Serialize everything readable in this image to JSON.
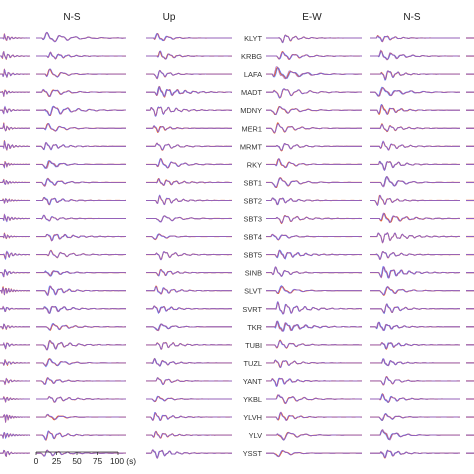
{
  "chart_data": {
    "type": "line",
    "panels": [
      {
        "component": ""
      },
      {
        "component": "N-S"
      },
      {
        "component": "Up"
      },
      {
        "component": "E-W"
      },
      {
        "component": "N-S"
      },
      {
        "component": ""
      }
    ],
    "stations": [
      "KLYT",
      "KRBG",
      "LAFA",
      "MADT",
      "MDNY",
      "MER1",
      "MRMT",
      "RKY",
      "SBT1",
      "SBT2",
      "SBT3",
      "SBT4",
      "SBT5",
      "SINB",
      "SLVT",
      "SVRT",
      "TKR",
      "TUBI",
      "TUZL",
      "YANT",
      "YKBL",
      "YLVH",
      "YLV",
      "YSST"
    ],
    "time_axis": {
      "ticks": [
        "0",
        "25",
        "50",
        "75",
        "100 (s)"
      ],
      "range": [
        0,
        100
      ]
    },
    "series": [
      {
        "color": "#e8642a"
      },
      {
        "color": "#4a6cff"
      },
      {
        "color": "#9c5fc4"
      }
    ]
  }
}
